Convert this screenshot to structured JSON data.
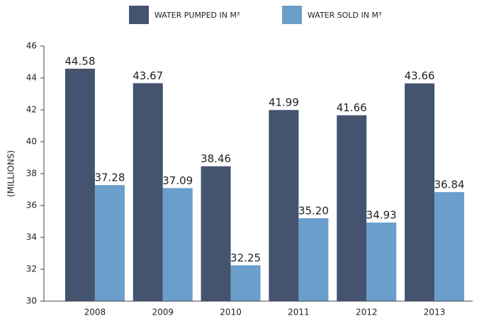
{
  "chart_data": {
    "type": "bar",
    "categories": [
      "2008",
      "2009",
      "2010",
      "2011",
      "2012",
      "2013"
    ],
    "series": [
      {
        "name": "WATER PUMPED IN M³",
        "color": "#44546f",
        "values": [
          44.58,
          43.67,
          38.46,
          41.99,
          41.66,
          43.66
        ],
        "value_labels": [
          "44.58",
          "43.67",
          "38.46",
          "41.99",
          "41.66",
          "43.66"
        ]
      },
      {
        "name": "WATER SOLD IN M³",
        "color": "#6a9ecb",
        "values": [
          37.28,
          37.09,
          32.25,
          35.2,
          34.93,
          36.84
        ],
        "value_labels": [
          "37.28",
          "37.09",
          "32.25",
          "35.20",
          "34.93",
          "36.84"
        ]
      }
    ],
    "y_label": "(MILLIONS)",
    "ylim": [
      30,
      46
    ],
    "yticks": [
      30,
      32,
      34,
      36,
      38,
      40,
      42,
      44,
      46
    ],
    "grid": false,
    "legend": "top"
  }
}
